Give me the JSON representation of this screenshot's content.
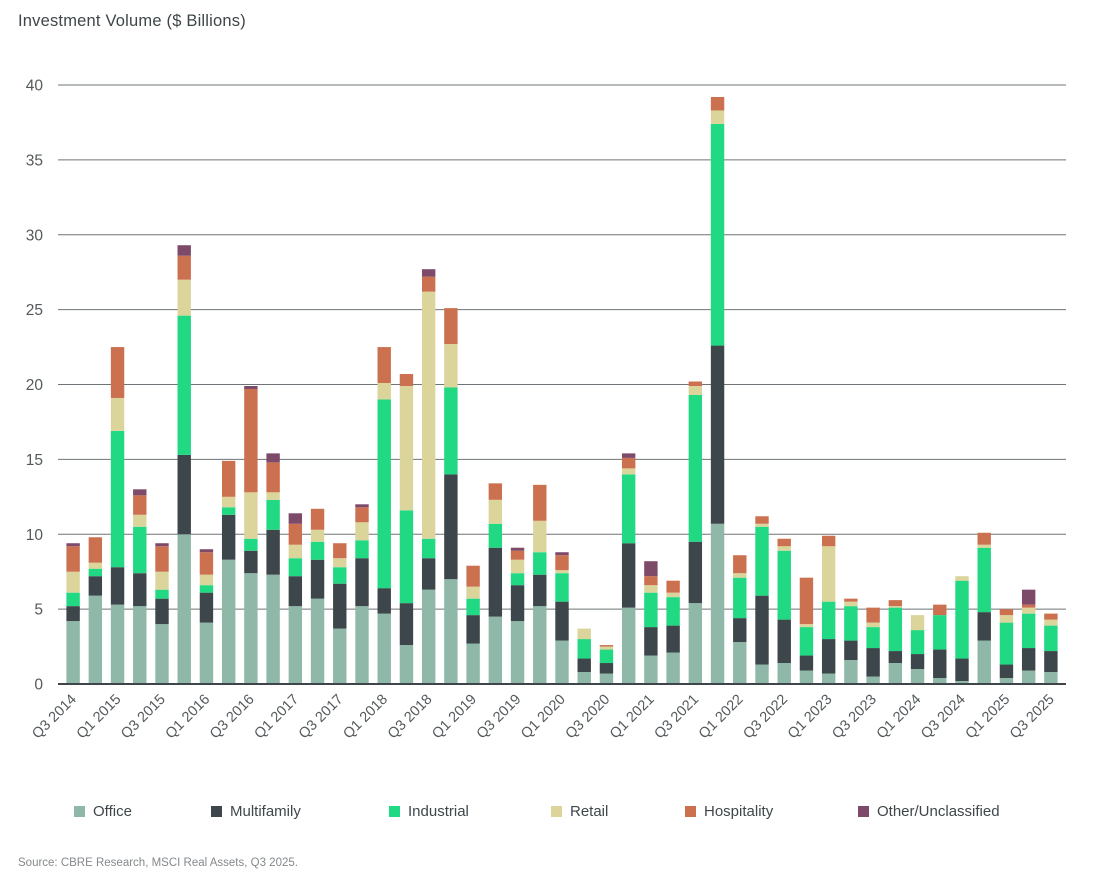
{
  "source_note": "Source: CBRE Research, MSCI Real Assets, Q3 2025.",
  "axis": {
    "y_ticks": [
      0,
      5,
      10,
      15,
      20,
      25,
      30,
      35,
      40
    ],
    "x_label_every": 2
  },
  "chart_data": {
    "type": "bar",
    "stacked": true,
    "title": "Investment Volume ($ Billions)",
    "xlabel": "",
    "ylabel": "Investment Volume ($ Billions)",
    "ylim": [
      0,
      40
    ],
    "grid": true,
    "legend_position": "bottom",
    "categories": [
      "Q3 2014",
      "Q4 2014",
      "Q1 2015",
      "Q2 2015",
      "Q3 2015",
      "Q4 2015",
      "Q1 2016",
      "Q2 2016",
      "Q3 2016",
      "Q4 2016",
      "Q1 2017",
      "Q2 2017",
      "Q3 2017",
      "Q4 2017",
      "Q1 2018",
      "Q2 2018",
      "Q3 2018",
      "Q4 2018",
      "Q1 2019",
      "Q2 2019",
      "Q3 2019",
      "Q4 2019",
      "Q1 2020",
      "Q2 2020",
      "Q3 2020",
      "Q4 2020",
      "Q1 2021",
      "Q2 2021",
      "Q3 2021",
      "Q4 2021",
      "Q1 2022",
      "Q2 2022",
      "Q3 2022",
      "Q4 2022",
      "Q1 2023",
      "Q2 2023",
      "Q3 2023",
      "Q4 2023",
      "Q1 2024",
      "Q2 2024",
      "Q3 2024",
      "Q4 2024",
      "Q1 2025",
      "Q2 2025",
      "Q3 2025"
    ],
    "series": [
      {
        "name": "Office",
        "color": "#8FB8A8",
        "values": [
          4.2,
          5.9,
          5.3,
          5.2,
          4.0,
          10.0,
          4.1,
          8.3,
          7.4,
          7.3,
          5.2,
          5.7,
          3.7,
          5.2,
          4.7,
          2.6,
          6.3,
          7.0,
          2.7,
          4.5,
          4.2,
          5.2,
          2.9,
          0.8,
          0.7,
          5.1,
          1.9,
          2.1,
          5.4,
          10.7,
          2.8,
          1.3,
          1.4,
          0.9,
          0.7,
          1.6,
          0.5,
          1.4,
          1.0,
          0.4,
          0.2,
          2.9,
          0.4,
          0.9,
          0.8
        ]
      },
      {
        "name": "Multifamily",
        "color": "#3D464B",
        "values": [
          1.0,
          1.3,
          2.5,
          2.2,
          1.7,
          5.3,
          2.0,
          3.0,
          1.5,
          3.0,
          2.0,
          2.6,
          3.0,
          3.2,
          1.7,
          2.8,
          2.1,
          7.0,
          1.9,
          4.6,
          2.4,
          2.1,
          2.6,
          0.9,
          0.7,
          4.3,
          1.9,
          1.8,
          4.1,
          11.9,
          1.6,
          4.6,
          2.9,
          1.0,
          2.3,
          1.3,
          1.9,
          0.8,
          1.0,
          1.9,
          1.5,
          1.9,
          0.9,
          1.5,
          1.4
        ]
      },
      {
        "name": "Industrial",
        "color": "#21D983",
        "values": [
          0.9,
          0.5,
          9.1,
          3.1,
          0.6,
          9.3,
          0.5,
          0.5,
          0.8,
          2.0,
          1.2,
          1.2,
          1.1,
          1.2,
          12.6,
          6.2,
          1.3,
          5.8,
          1.1,
          1.6,
          0.8,
          1.5,
          1.9,
          1.3,
          0.9,
          4.6,
          2.3,
          1.9,
          9.8,
          14.8,
          2.7,
          4.6,
          4.6,
          1.9,
          2.5,
          2.3,
          1.4,
          2.9,
          1.6,
          2.3,
          5.2,
          4.3,
          2.8,
          2.3,
          1.7
        ]
      },
      {
        "name": "Retail",
        "color": "#DBD59C",
        "values": [
          1.4,
          0.4,
          2.2,
          0.8,
          1.2,
          2.4,
          0.7,
          0.7,
          3.1,
          0.5,
          0.9,
          0.8,
          0.6,
          1.2,
          1.1,
          8.3,
          16.5,
          2.9,
          0.8,
          1.6,
          0.9,
          2.1,
          0.2,
          0.7,
          0.2,
          0.4,
          0.5,
          0.3,
          0.6,
          0.9,
          0.3,
          0.2,
          0.3,
          0.2,
          3.7,
          0.3,
          0.3,
          0.1,
          1.0,
          0.0,
          0.3,
          0.2,
          0.5,
          0.4,
          0.4
        ]
      },
      {
        "name": "Hospitality",
        "color": "#CC7150",
        "values": [
          1.7,
          1.7,
          3.4,
          1.3,
          1.7,
          1.6,
          1.5,
          2.4,
          6.9,
          2.0,
          1.4,
          1.4,
          1.0,
          1.0,
          2.4,
          0.8,
          1.0,
          2.4,
          1.4,
          1.1,
          0.6,
          2.4,
          1.0,
          0.0,
          0.1,
          0.7,
          0.6,
          0.8,
          0.3,
          0.9,
          1.2,
          0.5,
          0.5,
          3.1,
          0.7,
          0.2,
          1.0,
          0.4,
          0.0,
          0.7,
          0.0,
          0.8,
          0.4,
          0.2,
          0.4
        ]
      },
      {
        "name": "Other/Unclassified",
        "color": "#7D4A6A",
        "values": [
          0.2,
          0.0,
          0.0,
          0.4,
          0.2,
          0.7,
          0.2,
          0.0,
          0.2,
          0.6,
          0.7,
          0.0,
          0.0,
          0.2,
          0.0,
          0.0,
          0.5,
          0.0,
          0.0,
          0.0,
          0.2,
          0.0,
          0.2,
          0.0,
          0.0,
          0.3,
          1.0,
          0.0,
          0.0,
          0.0,
          0.0,
          0.0,
          0.0,
          0.0,
          0.0,
          0.0,
          0.0,
          0.0,
          0.0,
          0.0,
          0.0,
          0.0,
          0.0,
          1.0,
          0.0
        ]
      }
    ]
  },
  "style": {
    "grid_color": "#6E7477",
    "axis_color": "#3F4649",
    "tick_label_color": "#54595C",
    "legend_x_positions": [
      74,
      211,
      389,
      551,
      685,
      858
    ]
  }
}
